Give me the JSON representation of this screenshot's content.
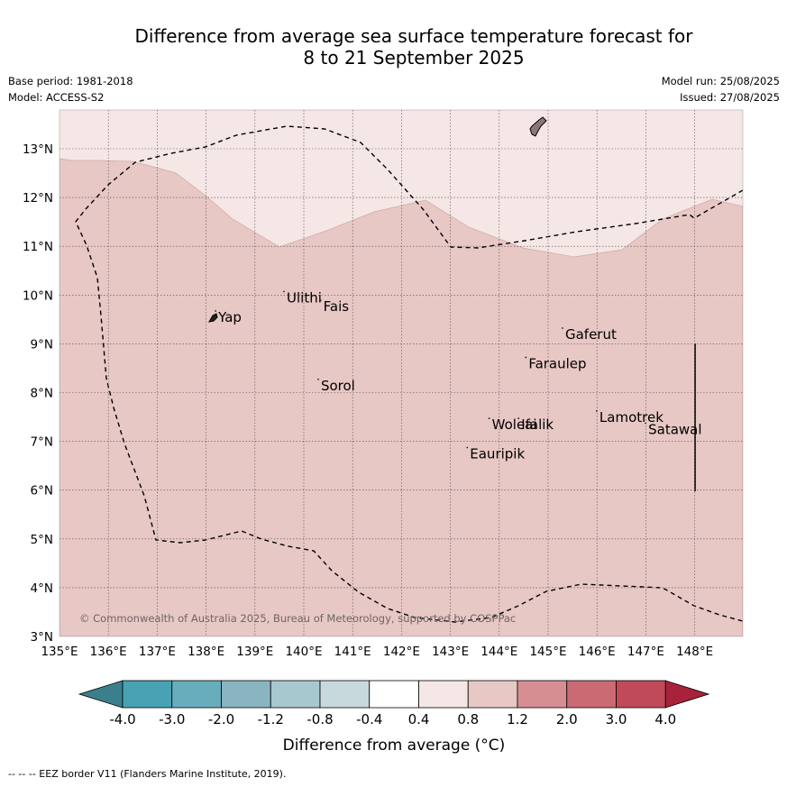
{
  "title": {
    "line1": "Difference from average sea surface temperature forecast for",
    "line2": "8 to 21 September 2025"
  },
  "meta": {
    "base_period": "Base period: 1981-2018",
    "model": "Model: ACCESS-S2",
    "model_run": "Model run: 25/08/2025",
    "issued": "Issued: 27/08/2025"
  },
  "map": {
    "x_ticks": [
      "135°E",
      "136°E",
      "137°E",
      "138°E",
      "139°E",
      "140°E",
      "141°E",
      "142°E",
      "143°E",
      "144°E",
      "145°E",
      "146°E",
      "147°E",
      "148°E"
    ],
    "y_ticks": [
      "3°N",
      "4°N",
      "5°N",
      "6°N",
      "7°N",
      "8°N",
      "9°N",
      "10°N",
      "11°N",
      "12°N",
      "13°N"
    ],
    "extent": {
      "lon": [
        135,
        149
      ],
      "lat": [
        3,
        13.8
      ]
    },
    "fill_colors": {
      "0.4 to 0.8": "#f4e7e6",
      "0.8 to 1.2": "#e7c8c4"
    },
    "places": [
      {
        "name": "Yap",
        "lon": 138.25,
        "lat": 9.45
      },
      {
        "name": "Ulithi",
        "lon": 139.65,
        "lat": 9.85
      },
      {
        "name": "Fais",
        "lon": 140.4,
        "lat": 9.67
      },
      {
        "name": "Sorol",
        "lon": 140.35,
        "lat": 8.05
      },
      {
        "name": "Gaferut",
        "lon": 145.35,
        "lat": 9.1
      },
      {
        "name": "Faraulep",
        "lon": 144.6,
        "lat": 8.5
      },
      {
        "name": "Lamotrek",
        "lon": 146.05,
        "lat": 7.4
      },
      {
        "name": "Satawal",
        "lon": 147.05,
        "lat": 7.15
      },
      {
        "name": "Woleai",
        "lon": 143.85,
        "lat": 7.25
      },
      {
        "name": "Ifalik",
        "lon": 144.45,
        "lat": 7.25
      },
      {
        "name": "Eauripik",
        "lon": 143.4,
        "lat": 6.65
      }
    ],
    "copyright": "© Commonwealth of Australia 2025, Bureau of Meteorology, supported by COSPPac"
  },
  "colorbar": {
    "ticks": [
      "-4.0",
      "-3.0",
      "-2.0",
      "-1.2",
      "-0.8",
      "-0.4",
      "0.4",
      "0.8",
      "1.2",
      "2.0",
      "3.0",
      "4.0"
    ],
    "colors": [
      "#3b7f8c",
      "#48a2b4",
      "#68adbb",
      "#88b5c1",
      "#a8c8cf",
      "#c8d9dd",
      "#ffffff",
      "#f4e7e6",
      "#e7c8c4",
      "#d78e93",
      "#ca6a73",
      "#c04a59",
      "#a8223b"
    ],
    "label": "Difference from average (°C)"
  },
  "footnote": "--  --  -- EEZ border V11 (Flanders Marine Institute, 2019)."
}
